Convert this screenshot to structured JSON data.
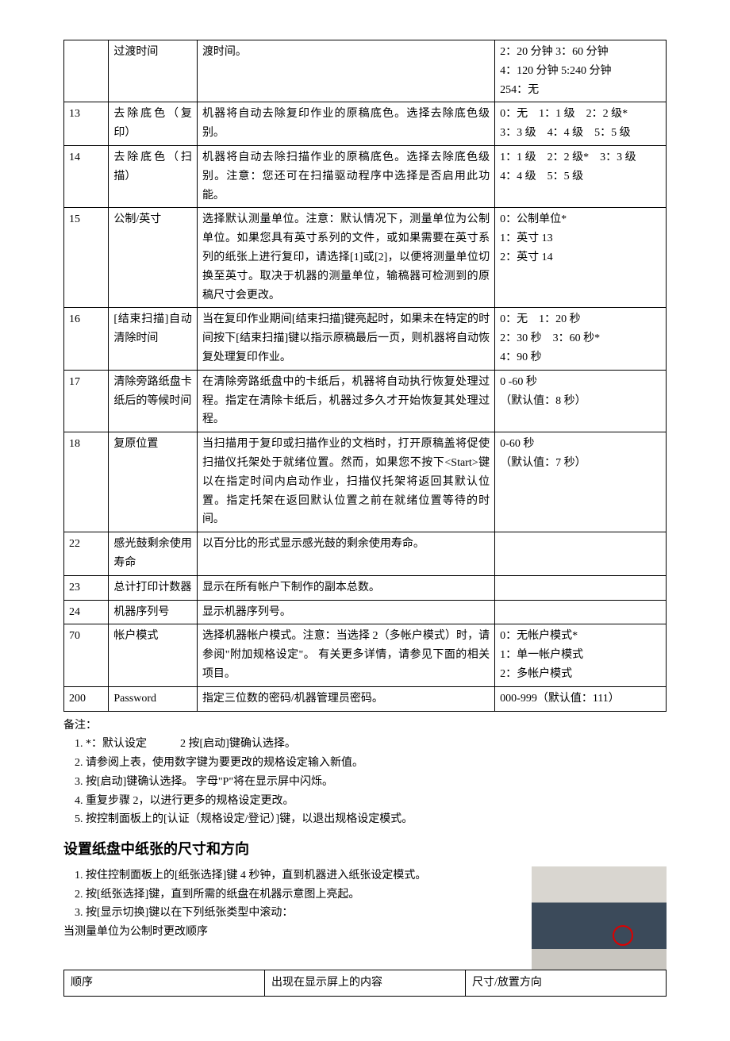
{
  "mainTable": {
    "rows": [
      {
        "id": "",
        "name": "过渡时间",
        "desc": "渡时间。",
        "opts": "2：20 分钟 3：60 分钟\n4：120 分钟 5:240 分钟\n254：无"
      },
      {
        "id": "13",
        "name": "去除底色（复印）",
        "desc": "机器将自动去除复印作业的原稿底色。选择去除底色级别。",
        "opts": "0：无　1：1 级　2：2 级*\n3：3 级　4：4 级　5：5 级"
      },
      {
        "id": "14",
        "name": "去除底色（扫描）",
        "desc": "机器将自动去除扫描作业的原稿底色。选择去除底色级别。注意：您还可在扫描驱动程序中选择是否启用此功能。",
        "opts": "1：1 级　2：2 级*　3：3 级\n4：4 级　5：5 级"
      },
      {
        "id": "15",
        "name": "公制/英寸",
        "desc": "选择默认测量单位。注意：默认情况下，测量单位为公制单位。如果您具有英寸系列的文件，或如果需要在英寸系列的纸张上进行复印，请选择[1]或[2]，以便将测量单位切换至英寸。取决于机器的测量单位，输稿器可检测到的原稿尺寸会更改。",
        "opts": "0：公制单位*\n1：英寸 13\n2：英寸 14"
      },
      {
        "id": "16",
        "name": "[结束扫描]自动清除时间",
        "desc": "当在复印作业期间[结束扫描]键亮起时，如果未在特定的时间按下[结束扫描]键以指示原稿最后一页，则机器将自动恢复处理复印作业。",
        "opts": "0：无　1：20 秒\n2：30 秒　3：60 秒*\n4：90 秒"
      },
      {
        "id": "17",
        "name": "清除旁路纸盘卡纸后的等候时间",
        "desc": "在清除旁路纸盘中的卡纸后，机器将自动执行恢复处理过程。指定在清除卡纸后，机器过多久才开始恢复其处理过程。",
        "opts": "0 -60 秒\n（默认值：8 秒）"
      },
      {
        "id": "18",
        "name": "复原位置",
        "desc": "当扫描用于复印或扫描作业的文档时，打开原稿盖将促使扫描仪托架处于就绪位置。然而，如果您不按下<Start>键以在指定时间内启动作业，扫描仪托架将返回其默认位置。指定托架在返回默认位置之前在就绪位置等待的时间。",
        "opts": "0-60 秒\n（默认值：7 秒）"
      },
      {
        "id": "22",
        "name": "感光鼓剩余使用寿命",
        "desc": "以百分比的形式显示感光鼓的剩余使用寿命。",
        "opts": ""
      },
      {
        "id": "23",
        "name": "总计打印计数器",
        "desc": "显示在所有帐户下制作的副本总数。",
        "opts": ""
      },
      {
        "id": "24",
        "name": "机器序列号",
        "desc": "显示机器序列号。",
        "opts": ""
      },
      {
        "id": "70",
        "name": "帐户模式",
        "desc": "选择机器帐户模式。注意：当选择 2（多帐户模式）时，请参阅\"附加规格设定\"。 有关更多详情，请参见下面的相关项目。",
        "opts": "0：无帐户模式*\n1：单一帐户模式\n2：多帐户模式"
      },
      {
        "id": "200",
        "name": "Password",
        "desc": "指定三位数的密码/机器管理员密码。",
        "opts": "000-999（默认值：111）"
      }
    ]
  },
  "notesLabel": "备注：",
  "notes": [
    "*：默认设定　　　2 按[启动]键确认选择。",
    "请参阅上表，使用数字键为要更改的规格设定输入新值。",
    "按[启动]键确认选择。 字母\"P\"将在显示屏中闪烁。",
    "重复步骤 2，以进行更多的规格设定更改。",
    "按控制面板上的[认证（规格设定/登记）]键，以退出规格设定模式。"
  ],
  "sectionHeading": "设置纸盘中纸张的尺寸和方向",
  "steps": [
    "按住控制面板上的[纸张选择]键 4 秒钟，直到机器进入纸张设定模式。",
    "按[纸张选择]键，直到所需的纸盘在机器示意图上亮起。",
    "按[显示切换]键以在下列纸张类型中滚动："
  ],
  "afterSteps": "当测量单位为公制时更改顺序",
  "smallTable": {
    "headers": [
      "顺序",
      "出现在显示屏上的内容",
      "尺寸/放置方向"
    ]
  }
}
